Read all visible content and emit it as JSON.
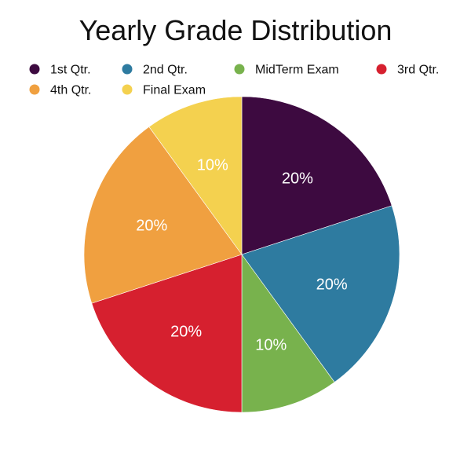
{
  "chart_data": {
    "type": "pie",
    "title": "Yearly Grade Distribution",
    "legend_position": "top",
    "slices": [
      {
        "label": "1st Qtr.",
        "value": 20,
        "display": "20%",
        "color": "#3d0a40"
      },
      {
        "label": "2nd Qtr.",
        "value": 20,
        "display": "20%",
        "color": "#2e7ba0"
      },
      {
        "label": "MidTerm Exam",
        "value": 10,
        "display": "10%",
        "color": "#78b24d"
      },
      {
        "label": "3rd Qtr.",
        "value": 20,
        "display": "20%",
        "color": "#d6202f"
      },
      {
        "label": "4th Qtr.",
        "value": 20,
        "display": "20%",
        "color": "#f0a040"
      },
      {
        "label": "Final Exam",
        "value": 10,
        "display": "10%",
        "color": "#f4d14f"
      }
    ]
  }
}
